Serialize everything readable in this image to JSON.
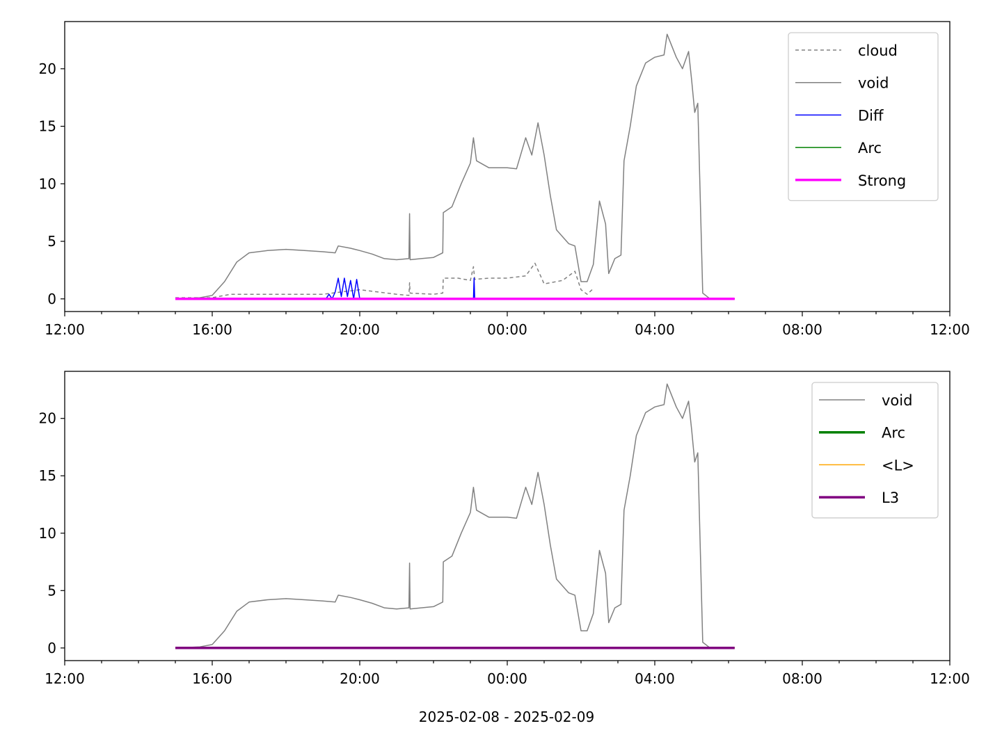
{
  "figure": {
    "xlabel": "2025-02-08 - 2025-02-09"
  },
  "colors": {
    "cloud": "#808080",
    "void": "#808080",
    "Diff": "#0000ff",
    "Arc": "#008000",
    "Strong": "#ff00ff",
    "<L>": "#ffa500",
    "L3": "#800080"
  },
  "chart_data": [
    {
      "type": "line",
      "title": "",
      "xlabel": "",
      "ylabel": "",
      "x_unit": "hours since 2025-02-08 00:00",
      "xlim": [
        "2025-02-08 12:00",
        "2025-02-09 12:00"
      ],
      "ylim": [
        -1.1,
        24.1
      ],
      "x_ticks": [
        "12:00",
        "16:00",
        "20:00",
        "00:00",
        "04:00",
        "08:00",
        "12:00"
      ],
      "y_ticks": [
        0,
        5,
        10,
        15,
        20
      ],
      "legend_position": "top-right",
      "grid": false,
      "series": [
        {
          "name": "cloud",
          "style": "dashed",
          "points": [
            [
              "2025-02-08 15:00",
              0.1
            ],
            [
              "2025-02-08 15:30",
              0.1
            ],
            [
              "2025-02-08 16:00",
              0.1
            ],
            [
              "2025-02-08 16:30",
              0.4
            ],
            [
              "2025-02-08 17:00",
              0.4
            ],
            [
              "2025-02-08 18:00",
              0.4
            ],
            [
              "2025-02-08 19:00",
              0.4
            ],
            [
              "2025-02-08 19:30",
              0.6
            ],
            [
              "2025-02-08 20:00",
              0.8
            ],
            [
              "2025-02-08 20:30",
              0.6
            ],
            [
              "2025-02-08 21:00",
              0.4
            ],
            [
              "2025-02-08 21:20",
              0.3
            ],
            [
              "2025-02-08 21:21",
              1.4
            ],
            [
              "2025-02-08 21:22",
              0.5
            ],
            [
              "2025-02-08 22:00",
              0.4
            ],
            [
              "2025-02-08 22:15",
              0.5
            ],
            [
              "2025-02-08 22:16",
              1.8
            ],
            [
              "2025-02-08 22:40",
              1.8
            ],
            [
              "2025-02-08 23:00",
              1.6
            ],
            [
              "2025-02-08 23:05",
              2.8
            ],
            [
              "2025-02-08 23:07",
              1.7
            ],
            [
              "2025-02-08 23:30",
              1.8
            ],
            [
              "2025-02-09 00:00",
              1.8
            ],
            [
              "2025-02-09 00:30",
              2.0
            ],
            [
              "2025-02-09 00:45",
              3.1
            ],
            [
              "2025-02-09 01:00",
              1.3
            ],
            [
              "2025-02-09 01:30",
              1.6
            ],
            [
              "2025-02-09 01:50",
              2.4
            ],
            [
              "2025-02-09 02:00",
              0.8
            ],
            [
              "2025-02-09 02:10",
              0.4
            ],
            [
              "2025-02-09 02:20",
              0.9
            ]
          ]
        },
        {
          "name": "void",
          "style": "solid",
          "points": [
            [
              "2025-02-08 15:00",
              0.0
            ],
            [
              "2025-02-08 15:40",
              0.1
            ],
            [
              "2025-02-08 16:00",
              0.3
            ],
            [
              "2025-02-08 16:20",
              1.5
            ],
            [
              "2025-02-08 16:40",
              3.2
            ],
            [
              "2025-02-08 17:00",
              4.0
            ],
            [
              "2025-02-08 17:30",
              4.2
            ],
            [
              "2025-02-08 18:00",
              4.3
            ],
            [
              "2025-02-08 18:30",
              4.2
            ],
            [
              "2025-02-08 19:00",
              4.1
            ],
            [
              "2025-02-08 19:20",
              4.0
            ],
            [
              "2025-02-08 19:25",
              4.6
            ],
            [
              "2025-02-08 19:45",
              4.4
            ],
            [
              "2025-02-08 20:00",
              4.2
            ],
            [
              "2025-02-08 20:20",
              3.9
            ],
            [
              "2025-02-08 20:40",
              3.5
            ],
            [
              "2025-02-08 21:00",
              3.4
            ],
            [
              "2025-02-08 21:20",
              3.5
            ],
            [
              "2025-02-08 21:21",
              7.4
            ],
            [
              "2025-02-08 21:22",
              3.4
            ],
            [
              "2025-02-08 21:40",
              3.5
            ],
            [
              "2025-02-08 22:00",
              3.6
            ],
            [
              "2025-02-08 22:15",
              4.0
            ],
            [
              "2025-02-08 22:16",
              7.5
            ],
            [
              "2025-02-08 22:30",
              8.0
            ],
            [
              "2025-02-08 22:45",
              10.0
            ],
            [
              "2025-02-08 23:00",
              11.8
            ],
            [
              "2025-02-08 23:05",
              14.0
            ],
            [
              "2025-02-08 23:10",
              12.0
            ],
            [
              "2025-02-08 23:30",
              11.4
            ],
            [
              "2025-02-09 00:00",
              11.4
            ],
            [
              "2025-02-09 00:15",
              11.3
            ],
            [
              "2025-02-09 00:30",
              14.0
            ],
            [
              "2025-02-09 00:40",
              12.5
            ],
            [
              "2025-02-09 00:50",
              15.3
            ],
            [
              "2025-02-09 01:00",
              12.5
            ],
            [
              "2025-02-09 01:10",
              9.0
            ],
            [
              "2025-02-09 01:20",
              6.0
            ],
            [
              "2025-02-09 01:40",
              4.8
            ],
            [
              "2025-02-09 01:50",
              4.6
            ],
            [
              "2025-02-09 02:00",
              1.5
            ],
            [
              "2025-02-09 02:10",
              1.5
            ],
            [
              "2025-02-09 02:20",
              3.0
            ],
            [
              "2025-02-09 02:30",
              8.5
            ],
            [
              "2025-02-09 02:40",
              6.5
            ],
            [
              "2025-02-09 02:45",
              2.2
            ],
            [
              "2025-02-09 02:55",
              3.5
            ],
            [
              "2025-02-09 03:05",
              3.8
            ],
            [
              "2025-02-09 03:10",
              12.0
            ],
            [
              "2025-02-09 03:20",
              15.0
            ],
            [
              "2025-02-09 03:30",
              18.5
            ],
            [
              "2025-02-09 03:45",
              20.5
            ],
            [
              "2025-02-09 04:00",
              21.0
            ],
            [
              "2025-02-09 04:15",
              21.2
            ],
            [
              "2025-02-09 04:20",
              23.0
            ],
            [
              "2025-02-09 04:35",
              21.0
            ],
            [
              "2025-02-09 04:45",
              20.0
            ],
            [
              "2025-02-09 04:55",
              21.5
            ],
            [
              "2025-02-09 05:00",
              19.0
            ],
            [
              "2025-02-09 05:05",
              16.2
            ],
            [
              "2025-02-09 05:10",
              17.0
            ],
            [
              "2025-02-09 05:18",
              0.5
            ],
            [
              "2025-02-09 05:30",
              0.0
            ],
            [
              "2025-02-09 06:00",
              0.0
            ],
            [
              "2025-02-09 06:10",
              0.0
            ]
          ]
        },
        {
          "name": "Diff",
          "style": "solid",
          "points": [
            [
              "2025-02-08 19:05",
              0.0
            ],
            [
              "2025-02-08 19:10",
              0.4
            ],
            [
              "2025-02-08 19:15",
              0.0
            ],
            [
              "2025-02-08 19:20",
              0.6
            ],
            [
              "2025-02-08 19:25",
              1.8
            ],
            [
              "2025-02-08 19:30",
              0.2
            ],
            [
              "2025-02-08 19:35",
              1.8
            ],
            [
              "2025-02-08 19:40",
              0.2
            ],
            [
              "2025-02-08 19:45",
              1.6
            ],
            [
              "2025-02-08 19:50",
              0.0
            ],
            [
              "2025-02-08 19:55",
              1.7
            ],
            [
              "2025-02-08 20:00",
              0.0
            ],
            [
              "2025-02-08 23:05",
              0.0
            ],
            [
              "2025-02-08 23:06",
              1.8
            ],
            [
              "2025-02-08 23:07",
              0.0
            ]
          ]
        },
        {
          "name": "Arc",
          "style": "solid",
          "points": [
            [
              "2025-02-08 15:00",
              0.0
            ],
            [
              "2025-02-09 06:10",
              0.0
            ]
          ]
        },
        {
          "name": "Strong",
          "style": "solid",
          "points": [
            [
              "2025-02-08 15:00",
              0.0
            ],
            [
              "2025-02-09 06:10",
              0.0
            ]
          ]
        }
      ],
      "legend": [
        "cloud",
        "void",
        "Diff",
        "Arc",
        "Strong"
      ]
    },
    {
      "type": "line",
      "title": "",
      "xlabel": "2025-02-08 - 2025-02-09",
      "ylabel": "",
      "x_unit": "hours since 2025-02-08 00:00",
      "xlim": [
        "2025-02-08 12:00",
        "2025-02-09 12:00"
      ],
      "ylim": [
        -1.1,
        24.1
      ],
      "x_ticks": [
        "12:00",
        "16:00",
        "20:00",
        "00:00",
        "04:00",
        "08:00",
        "12:00"
      ],
      "y_ticks": [
        0,
        5,
        10,
        15,
        20
      ],
      "legend_position": "top-right",
      "grid": false,
      "series": [
        {
          "name": "void",
          "style": "solid",
          "points": "same as top panel void"
        },
        {
          "name": "Arc",
          "style": "solid",
          "points": [
            [
              "2025-02-08 15:00",
              0.0
            ],
            [
              "2025-02-09 06:10",
              0.0
            ]
          ]
        },
        {
          "name": "<L>",
          "style": "solid",
          "points": [
            [
              "2025-02-08 15:00",
              0.0
            ],
            [
              "2025-02-09 06:10",
              0.0
            ]
          ]
        },
        {
          "name": "L3",
          "style": "solid",
          "points": [
            [
              "2025-02-08 15:00",
              0.0
            ],
            [
              "2025-02-09 06:10",
              0.0
            ]
          ]
        }
      ],
      "legend": [
        "void",
        "Arc",
        "<L>",
        "L3"
      ]
    }
  ]
}
